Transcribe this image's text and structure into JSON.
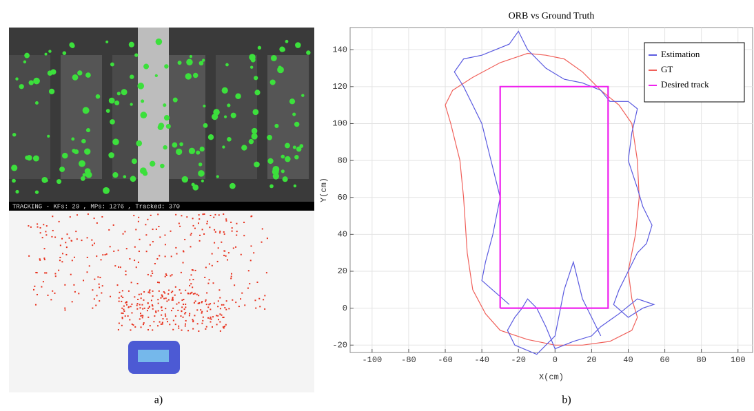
{
  "panel_a": {
    "status_text": "TRACKING  - KFs: 29 , MPs: 1276 , Tracked: 370",
    "label": "a)"
  },
  "panel_b_label": "b)",
  "chart_data": {
    "type": "line",
    "title": "ORB vs Ground Truth",
    "x_label": "X(cm)",
    "y_label": "Y(cm)",
    "xlim": [
      -112,
      108
    ],
    "ylim": [
      -24,
      152
    ],
    "xticks": [
      -100,
      -80,
      -60,
      -40,
      -20,
      0,
      20,
      40,
      60,
      80,
      100
    ],
    "yticks": [
      -20,
      0,
      20,
      40,
      60,
      80,
      100,
      120,
      140
    ],
    "grid": true,
    "legend": "upper right",
    "series": [
      {
        "name": "Estimation",
        "color": "#5a5ae0",
        "x": [
          -25,
          -40,
          -38,
          -34,
          -30,
          -35,
          -40,
          -45,
          -50,
          -55,
          -50,
          -40,
          -25,
          -20,
          -15,
          -5,
          5,
          15,
          25,
          30,
          40,
          45,
          42,
          40,
          45,
          48,
          53,
          50,
          45,
          40,
          35,
          32,
          40,
          48,
          54,
          45,
          35,
          25,
          20,
          10,
          0,
          -5,
          -10,
          -15,
          -18,
          -22,
          -26,
          -22,
          -10,
          0,
          5,
          10,
          15,
          20,
          25
        ],
        "values": [
          2,
          15,
          25,
          40,
          60,
          80,
          100,
          110,
          120,
          128,
          135,
          137,
          143,
          150,
          140,
          130,
          124,
          122,
          118,
          112,
          112,
          108,
          95,
          80,
          65,
          55,
          45,
          35,
          30,
          20,
          10,
          2,
          -5,
          0,
          2,
          5,
          -3,
          -10,
          -15,
          -18,
          -22,
          -10,
          0,
          5,
          0,
          -5,
          -12,
          -20,
          -25,
          -15,
          10,
          25,
          5,
          -5,
          -15
        ]
      },
      {
        "name": "GT",
        "color": "#f0605a",
        "x": [
          -38,
          -45,
          -48,
          -50,
          -52,
          -57,
          -60,
          -56,
          -45,
          -30,
          -15,
          -5,
          5,
          15,
          25,
          35,
          42,
          45,
          46,
          44,
          40,
          42,
          45,
          42,
          30,
          15,
          0,
          -15,
          -30,
          -38
        ],
        "values": [
          -3,
          10,
          30,
          60,
          80,
          100,
          110,
          118,
          125,
          133,
          138,
          137,
          135,
          128,
          118,
          110,
          100,
          80,
          60,
          40,
          20,
          5,
          -5,
          -12,
          -18,
          -20,
          -20,
          -17,
          -12,
          -3
        ]
      },
      {
        "name": "Desired track",
        "color": "#ee22ee",
        "x": [
          -30,
          29,
          29,
          -30,
          -30
        ],
        "values": [
          0,
          0,
          120,
          120,
          0
        ]
      }
    ]
  }
}
